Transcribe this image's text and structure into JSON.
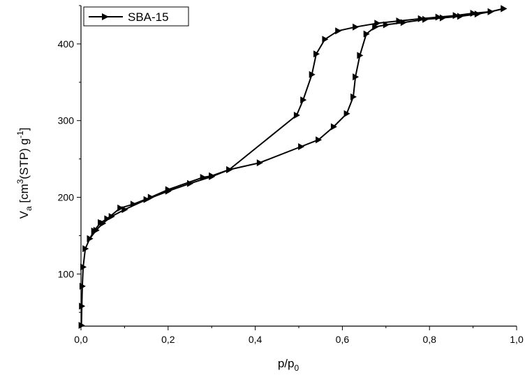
{
  "chart_data": {
    "type": "line",
    "title": "",
    "xlabel": {
      "main": "p/p",
      "sub": "0"
    },
    "ylabel": {
      "p1": "V",
      "p2": "a",
      "p3": " [cm",
      "p4": "3",
      "p5": "(STP) g",
      "p6": "-1",
      "p7": "]"
    },
    "xlim": [
      0,
      1.0
    ],
    "ylim": [
      32,
      450
    ],
    "x_ticks": [
      0.0,
      0.2,
      0.4,
      0.6,
      0.8,
      1.0
    ],
    "x_tick_labels": [
      "0,0",
      "0,2",
      "0,4",
      "0,6",
      "0,8",
      "1,0"
    ],
    "y_ticks": [
      100,
      200,
      300,
      400
    ],
    "y_tick_labels": [
      "100",
      "200",
      "300",
      "400"
    ],
    "grid": false,
    "legend_position": "top-left",
    "series": [
      {
        "name": "SBA-15",
        "color": "#000000",
        "marker": "triangle-right",
        "points": [
          [
            0.001,
            33
          ],
          [
            0.002,
            58
          ],
          [
            0.003,
            84
          ],
          [
            0.005,
            109
          ],
          [
            0.01,
            133
          ],
          [
            0.02,
            146
          ],
          [
            0.035,
            157
          ],
          [
            0.05,
            166
          ],
          [
            0.07,
            175
          ],
          [
            0.1,
            184
          ],
          [
            0.15,
            197
          ],
          [
            0.2,
            208
          ],
          [
            0.25,
            218
          ],
          [
            0.3,
            227
          ],
          [
            0.34,
            236
          ],
          [
            0.41,
            245
          ],
          [
            0.505,
            266
          ],
          [
            0.545,
            275
          ],
          [
            0.58,
            292
          ],
          [
            0.61,
            309
          ],
          [
            0.625,
            331
          ],
          [
            0.63,
            357
          ],
          [
            0.64,
            385
          ],
          [
            0.655,
            413
          ],
          [
            0.675,
            422
          ],
          [
            0.7,
            425
          ],
          [
            0.74,
            428
          ],
          [
            0.79,
            432
          ],
          [
            0.83,
            434
          ],
          [
            0.87,
            436
          ],
          [
            0.91,
            439
          ],
          [
            0.94,
            442
          ],
          [
            0.97,
            446
          ]
        ]
      },
      {
        "name": "",
        "color": "#000000",
        "marker": "triangle-right",
        "points": [
          [
            0.97,
            446
          ],
          [
            0.94,
            442
          ],
          [
            0.9,
            440
          ],
          [
            0.86,
            437
          ],
          [
            0.82,
            435
          ],
          [
            0.78,
            433
          ],
          [
            0.73,
            430
          ],
          [
            0.68,
            427
          ],
          [
            0.63,
            422
          ],
          [
            0.59,
            417
          ],
          [
            0.56,
            406
          ],
          [
            0.54,
            387
          ],
          [
            0.53,
            360
          ],
          [
            0.51,
            327
          ],
          [
            0.495,
            307
          ],
          [
            0.34,
            236
          ],
          [
            0.3,
            228
          ],
          [
            0.28,
            226
          ],
          [
            0.2,
            210
          ],
          [
            0.16,
            200
          ],
          [
            0.12,
            191
          ],
          [
            0.09,
            186
          ],
          [
            0.06,
            172
          ],
          [
            0.045,
            167
          ],
          [
            0.03,
            156
          ],
          [
            0.02,
            146
          ]
        ]
      }
    ]
  }
}
